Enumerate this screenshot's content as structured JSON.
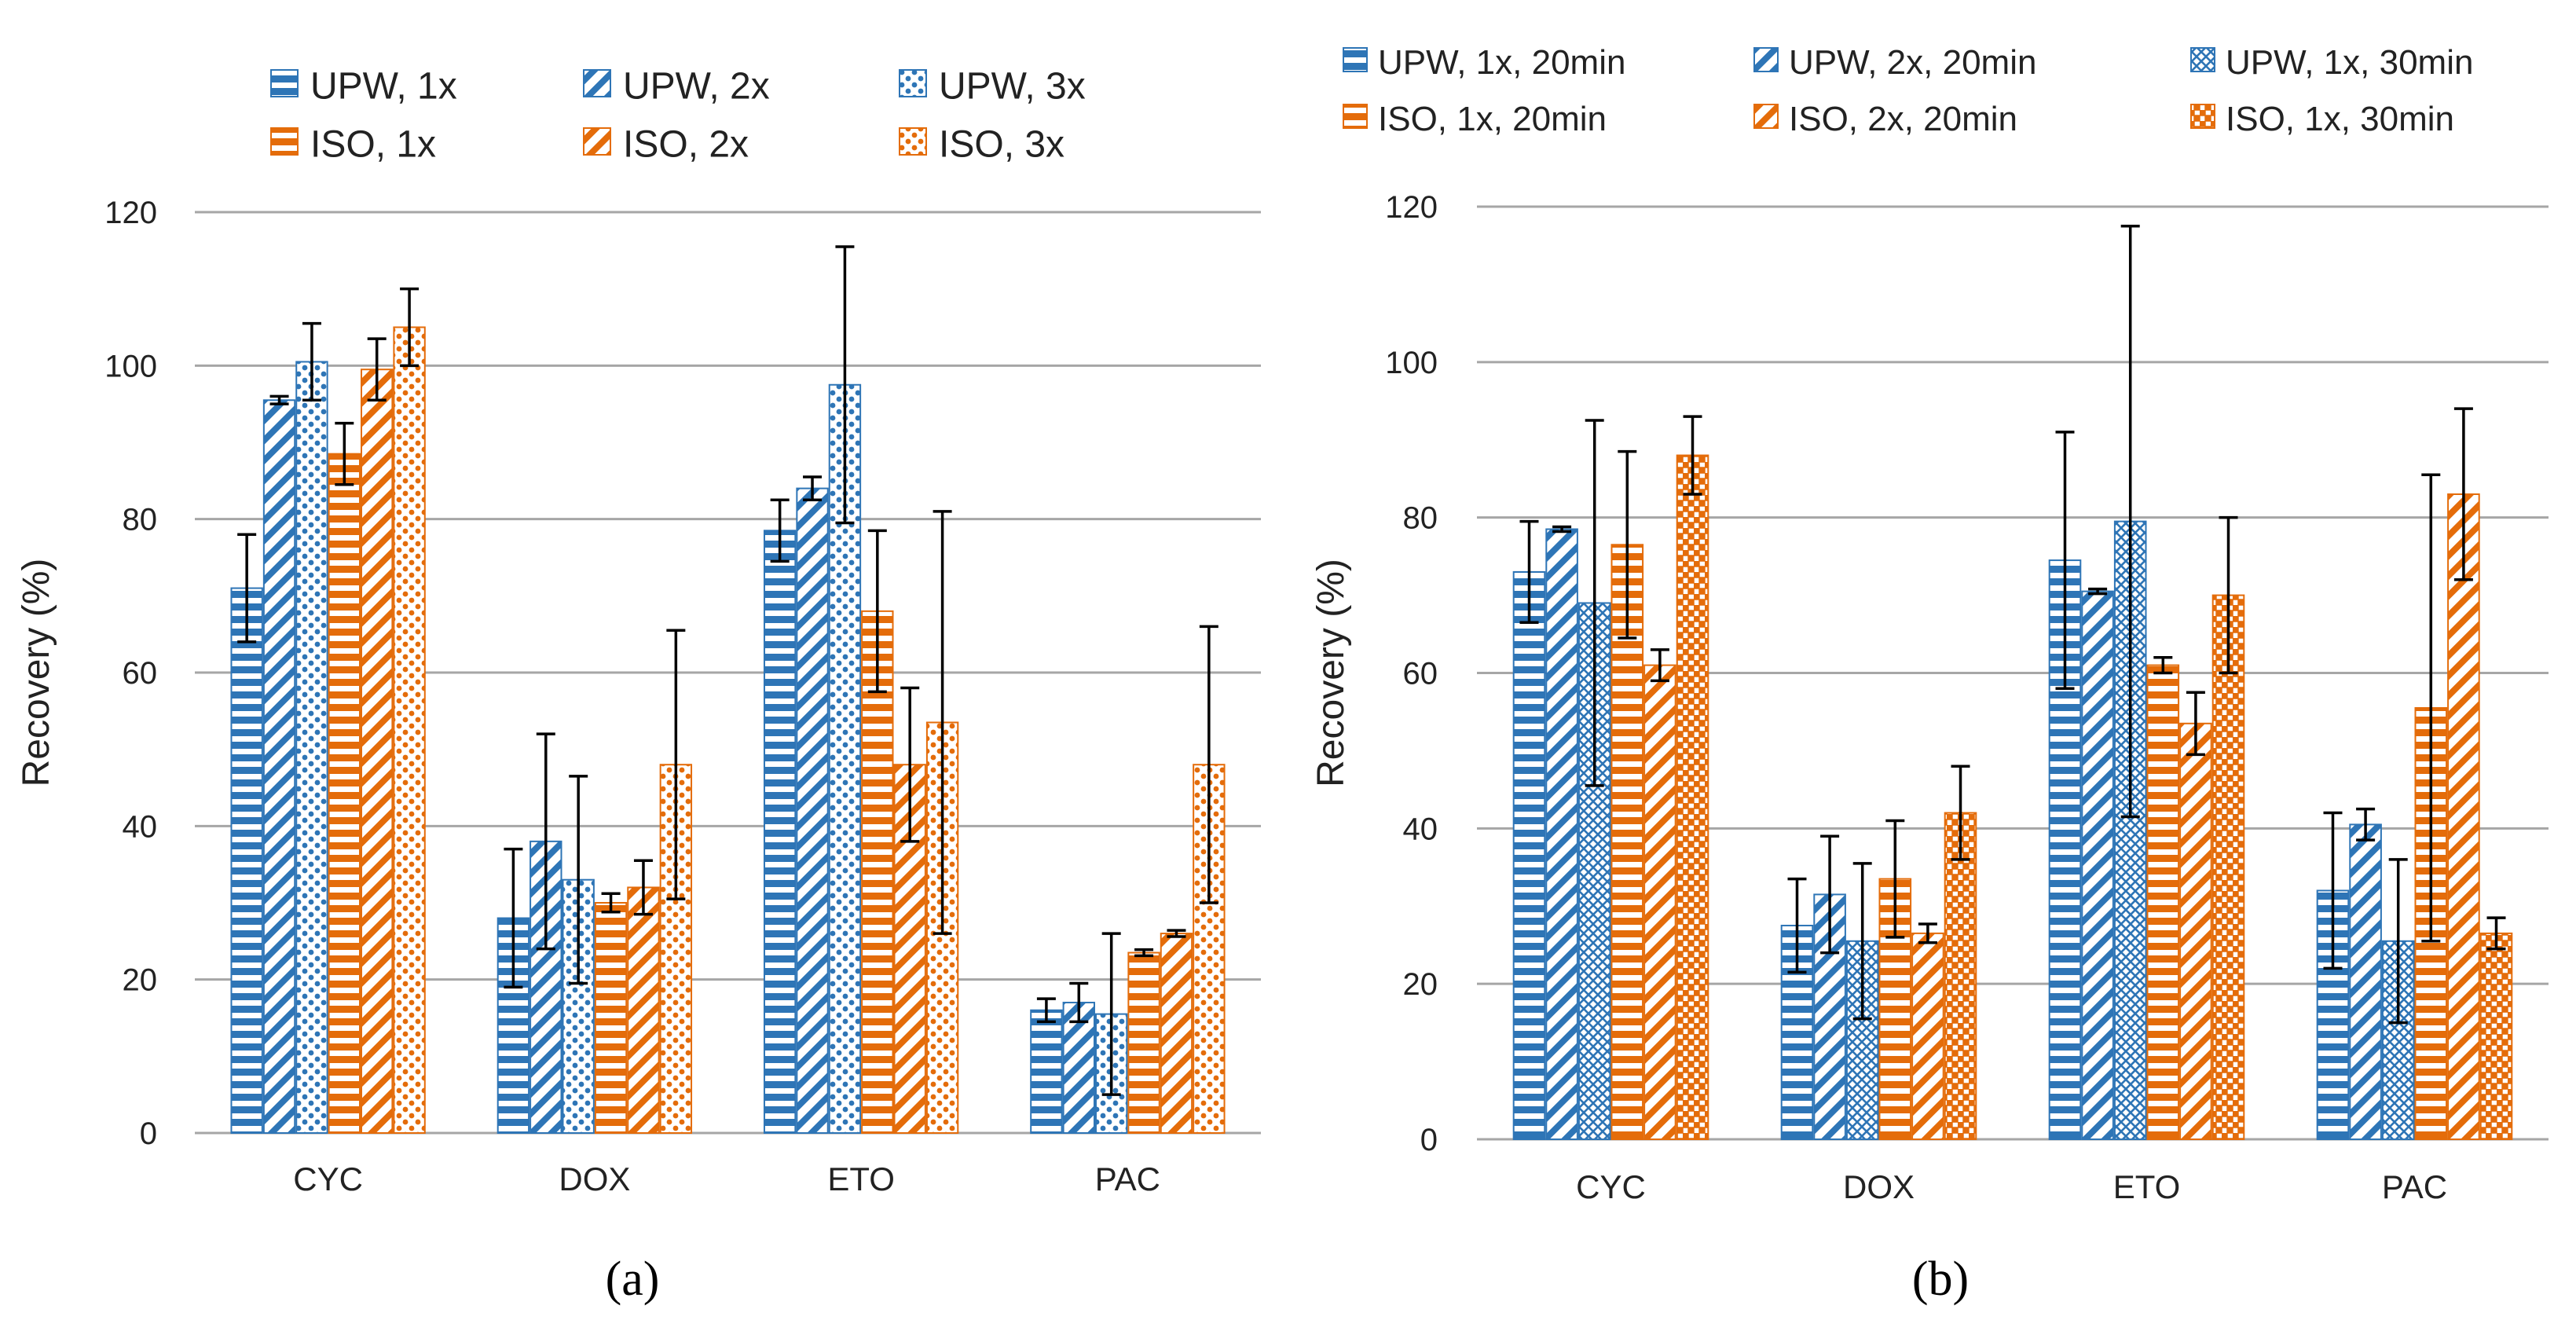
{
  "colors": {
    "blue": "#2e75b6",
    "orange": "#e46c0a",
    "grid": "#a6a6a6",
    "errorbar": "#000000"
  },
  "chart_data": [
    {
      "id": "a",
      "type": "bar",
      "panel_label": "(a)",
      "title": "",
      "xlabel": "",
      "ylabel": "Recovery (%)",
      "ylim": [
        0,
        120
      ],
      "yticks": [
        "0",
        "20",
        "40",
        "60",
        "80",
        "100",
        "120"
      ],
      "categories": [
        "CYC",
        "DOX",
        "ETO",
        "PAC"
      ],
      "grid": true,
      "legend_position": "top",
      "series": [
        {
          "name": "UPW, 1x",
          "color": "blue",
          "pattern": "hstripe",
          "values": [
            71,
            28,
            78.5,
            16
          ],
          "errors": [
            7,
            9,
            4,
            1.5
          ]
        },
        {
          "name": "UPW, 2x",
          "color": "blue",
          "pattern": "diag",
          "values": [
            95.5,
            38,
            84,
            17
          ],
          "errors": [
            0.5,
            14,
            1.5,
            2.5
          ]
        },
        {
          "name": "UPW, 3x",
          "color": "blue",
          "pattern": "dots",
          "values": [
            100.5,
            33,
            97.5,
            15.5
          ],
          "errors": [
            5,
            13.5,
            18,
            10.5
          ]
        },
        {
          "name": "ISO, 1x",
          "color": "orange",
          "pattern": "hstripe",
          "values": [
            88.5,
            30,
            68,
            23.5
          ],
          "errors": [
            4,
            1.2,
            10.5,
            0.4
          ]
        },
        {
          "name": "ISO, 2x",
          "color": "orange",
          "pattern": "diag",
          "values": [
            99.5,
            32,
            48,
            26
          ],
          "errors": [
            4,
            3.5,
            10,
            0.4
          ]
        },
        {
          "name": "ISO, 3x",
          "color": "orange",
          "pattern": "dots",
          "values": [
            105,
            48,
            53.5,
            48
          ],
          "errors": [
            5,
            17.5,
            27.5,
            18
          ]
        }
      ]
    },
    {
      "id": "b",
      "type": "bar",
      "panel_label": "(b)",
      "title": "",
      "xlabel": "",
      "ylabel": "Recovery (%)",
      "ylim": [
        0,
        120
      ],
      "yticks": [
        "0",
        "20",
        "40",
        "60",
        "80",
        "100",
        "120"
      ],
      "categories": [
        "CYC",
        "DOX",
        "ETO",
        "PAC"
      ],
      "grid": true,
      "legend_position": "top",
      "series": [
        {
          "name": "UPW, 1x, 20min",
          "color": "blue",
          "pattern": "hstripe",
          "values": [
            73,
            27.5,
            74.5,
            32
          ],
          "errors": [
            6.5,
            6,
            16.5,
            10
          ]
        },
        {
          "name": "UPW, 2x, 20min",
          "color": "blue",
          "pattern": "diag",
          "values": [
            78.5,
            31.5,
            70.5,
            40.5
          ],
          "errors": [
            0.3,
            7.5,
            0.3,
            2
          ]
        },
        {
          "name": "UPW, 1x, 30min",
          "color": "blue",
          "pattern": "cross",
          "values": [
            69,
            25.5,
            79.5,
            25.5
          ],
          "errors": [
            23.5,
            10,
            38,
            10.5
          ]
        },
        {
          "name": "ISO, 1x, 20min",
          "color": "orange",
          "pattern": "hstripe",
          "values": [
            76.5,
            33.5,
            61,
            55.5
          ],
          "errors": [
            12,
            7.5,
            1,
            30
          ]
        },
        {
          "name": "ISO, 2x, 20min",
          "color": "orange",
          "pattern": "diag",
          "values": [
            61,
            26.5,
            53.5,
            83
          ],
          "errors": [
            2,
            1.2,
            4,
            11
          ]
        },
        {
          "name": "ISO, 1x, 30min",
          "color": "orange",
          "pattern": "checker",
          "values": [
            88,
            42,
            70,
            26.5
          ],
          "errors": [
            5,
            6,
            10,
            2
          ]
        }
      ]
    }
  ]
}
